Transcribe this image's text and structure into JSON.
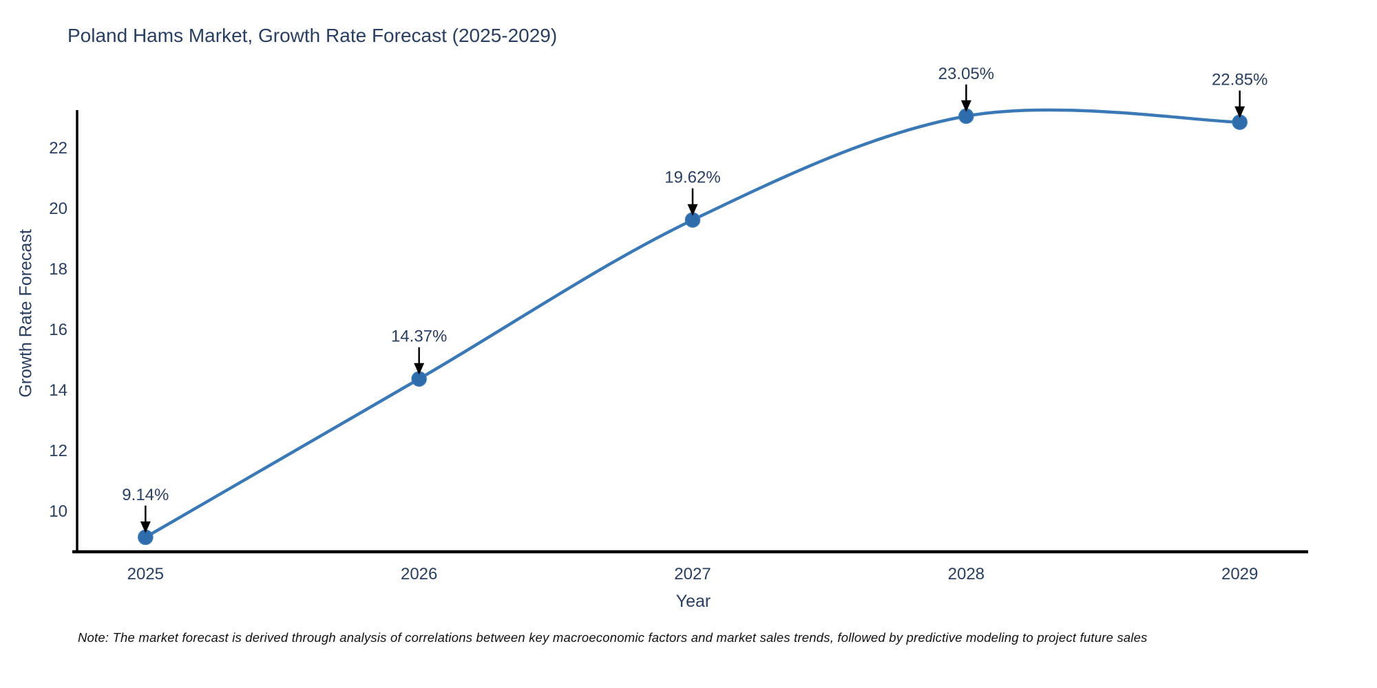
{
  "chart_data": {
    "type": "line",
    "line_shape": "spline",
    "title": "Poland Hams Market, Growth Rate Forecast (2025-2029)",
    "xlabel": "Year",
    "ylabel": "Growth Rate Forecast",
    "note": "Note: The market forecast is derived through analysis of correlations between key macroeconomic factors and market sales trends, followed by predictive modeling to project future sales",
    "x": [
      2025,
      2026,
      2027,
      2028,
      2029
    ],
    "values": [
      9.14,
      14.37,
      19.62,
      23.05,
      22.85
    ],
    "point_labels": [
      "9.14%",
      "14.37%",
      "19.62%",
      "23.05%",
      "22.85%"
    ],
    "xticks": [
      2025,
      2026,
      2027,
      2028,
      2029
    ],
    "yticks": [
      10,
      12,
      14,
      16,
      18,
      20,
      22
    ],
    "xlim": [
      2024.75,
      2029.25
    ],
    "ylim": [
      8.66,
      23.25
    ],
    "grid": false,
    "legend": false,
    "colors": {
      "line": "#3a78b6",
      "marker": "#2e6cab",
      "axis": "#000000",
      "text": "#2a3f5f",
      "annotation_text": "#2a3f5f",
      "annotation_arrow": "#000000",
      "background": "#ffffff"
    }
  }
}
